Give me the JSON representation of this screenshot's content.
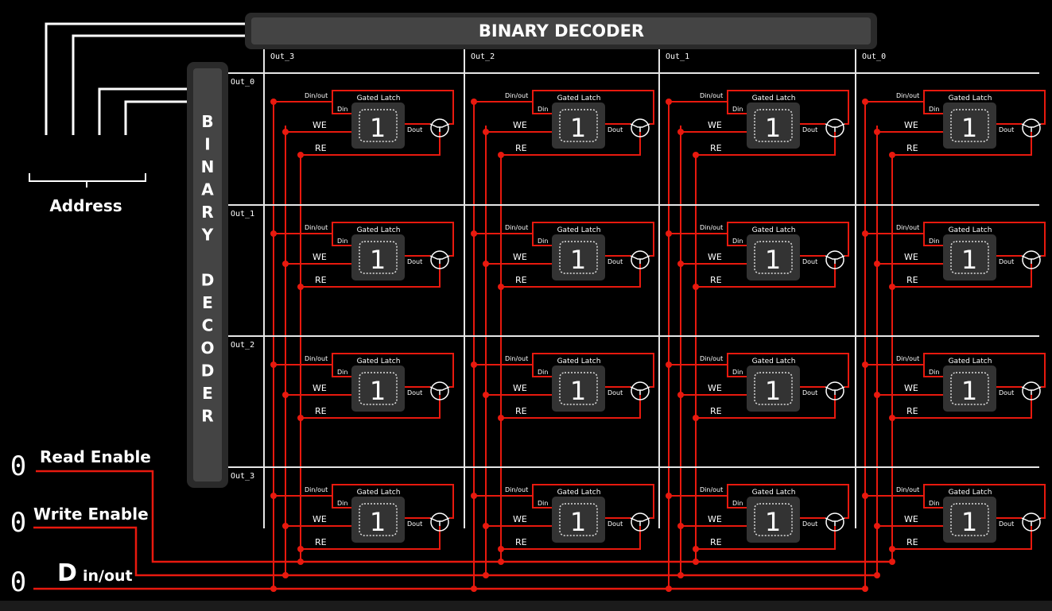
{
  "top_decoder": {
    "label": "BINARY DECODER",
    "outputs": [
      "Out_3",
      "Out_2",
      "Out_1",
      "Out_0"
    ]
  },
  "side_decoder": {
    "label": "BINARY DECODER",
    "letters": [
      "B",
      "I",
      "N",
      "A",
      "R",
      "Y",
      "",
      "D",
      "E",
      "C",
      "O",
      "D",
      "E",
      "R"
    ],
    "outputs": [
      "Out_0",
      "Out_1",
      "Out_2",
      "Out_3"
    ]
  },
  "address": {
    "label": "Address"
  },
  "inputs": [
    {
      "label": "Read Enable",
      "value": "0"
    },
    {
      "label": "Write Enable",
      "value": "0"
    },
    {
      "label": "D",
      "subscript": "in/out",
      "value": "0"
    }
  ],
  "cell": {
    "title": "Gated Latch",
    "din_out": "Din/out",
    "din": "Din",
    "we": "WE",
    "re": "RE",
    "dout": "Dout"
  },
  "latch_values": [
    [
      "1",
      "1",
      "1",
      "1"
    ],
    [
      "1",
      "1",
      "1",
      "1"
    ],
    [
      "1",
      "1",
      "1",
      "1"
    ],
    [
      "1",
      "1",
      "1",
      "1"
    ]
  ],
  "colors": {
    "wire": "#e8190e",
    "grid": "#e6e6e6",
    "decoder": "#3a3a3a",
    "latch": "#333333"
  }
}
